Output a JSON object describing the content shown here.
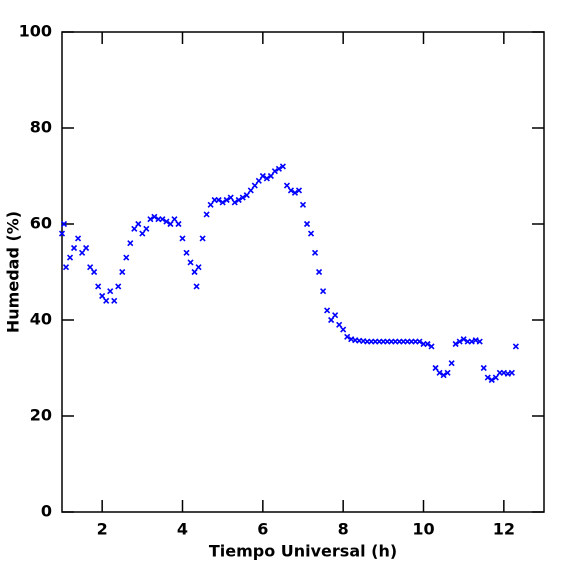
{
  "chart_data": {
    "type": "scatter",
    "x_label": "Tiempo Universal (h)",
    "y_label": "Humedad (%)",
    "color": "#0000ff",
    "marker": "x",
    "xlim": [
      1,
      13
    ],
    "ylim": [
      0,
      100
    ],
    "xticks": [
      2,
      4,
      6,
      8,
      10,
      12
    ],
    "yticks": [
      0,
      20,
      40,
      60,
      80,
      100
    ],
    "x": [
      1.0,
      1.05,
      1.1,
      1.2,
      1.3,
      1.4,
      1.5,
      1.6,
      1.7,
      1.8,
      1.9,
      2.0,
      2.1,
      2.2,
      2.3,
      2.4,
      2.5,
      2.6,
      2.7,
      2.8,
      2.9,
      3.0,
      3.1,
      3.2,
      3.3,
      3.4,
      3.5,
      3.6,
      3.7,
      3.8,
      3.9,
      4.0,
      4.1,
      4.2,
      4.3,
      4.35,
      4.4,
      4.5,
      4.6,
      4.7,
      4.8,
      4.9,
      5.0,
      5.1,
      5.2,
      5.3,
      5.4,
      5.5,
      5.6,
      5.7,
      5.8,
      5.9,
      6.0,
      6.1,
      6.2,
      6.3,
      6.4,
      6.5,
      6.6,
      6.7,
      6.8,
      6.9,
      7.0,
      7.1,
      7.2,
      7.3,
      7.4,
      7.5,
      7.6,
      7.7,
      7.8,
      7.9,
      8.0,
      8.1,
      8.2,
      8.3,
      8.4,
      8.5,
      8.6,
      8.7,
      8.8,
      8.9,
      9.0,
      9.1,
      9.2,
      9.3,
      9.4,
      9.5,
      9.6,
      9.7,
      9.8,
      9.9,
      10.0,
      10.1,
      10.2,
      10.3,
      10.4,
      10.5,
      10.6,
      10.7,
      10.8,
      10.9,
      11.0,
      11.1,
      11.2,
      11.3,
      11.4,
      11.5,
      11.6,
      11.7,
      11.8,
      11.9,
      12.0,
      12.1,
      12.2,
      12.3
    ],
    "values": [
      58,
      60,
      51,
      53,
      55,
      57,
      54,
      55,
      51,
      50,
      47,
      45,
      44,
      46,
      44,
      47,
      50,
      53,
      56,
      59,
      60,
      58,
      59,
      61,
      61.5,
      61,
      61,
      60.5,
      60,
      61,
      60,
      57,
      54,
      52,
      50,
      47,
      51,
      57,
      62,
      64,
      65,
      65,
      64.5,
      65,
      65.5,
      64.5,
      65,
      65.5,
      66,
      67,
      68,
      69,
      70,
      69.5,
      70,
      71,
      71.5,
      72,
      68,
      67,
      66.5,
      67,
      64,
      60,
      58,
      54,
      50,
      46,
      42,
      40,
      41,
      39,
      38,
      36.5,
      36,
      35.8,
      35.7,
      35.6,
      35.5,
      35.5,
      35.5,
      35.5,
      35.5,
      35.5,
      35.5,
      35.5,
      35.5,
      35.5,
      35.5,
      35.5,
      35.5,
      35.5,
      35,
      35,
      34.5,
      30,
      29,
      28.5,
      29,
      31,
      35,
      35.5,
      36,
      35.5,
      35.5,
      35.8,
      35.5,
      30,
      28,
      27.5,
      28,
      29,
      29,
      28.8,
      29,
      34.5
    ]
  }
}
